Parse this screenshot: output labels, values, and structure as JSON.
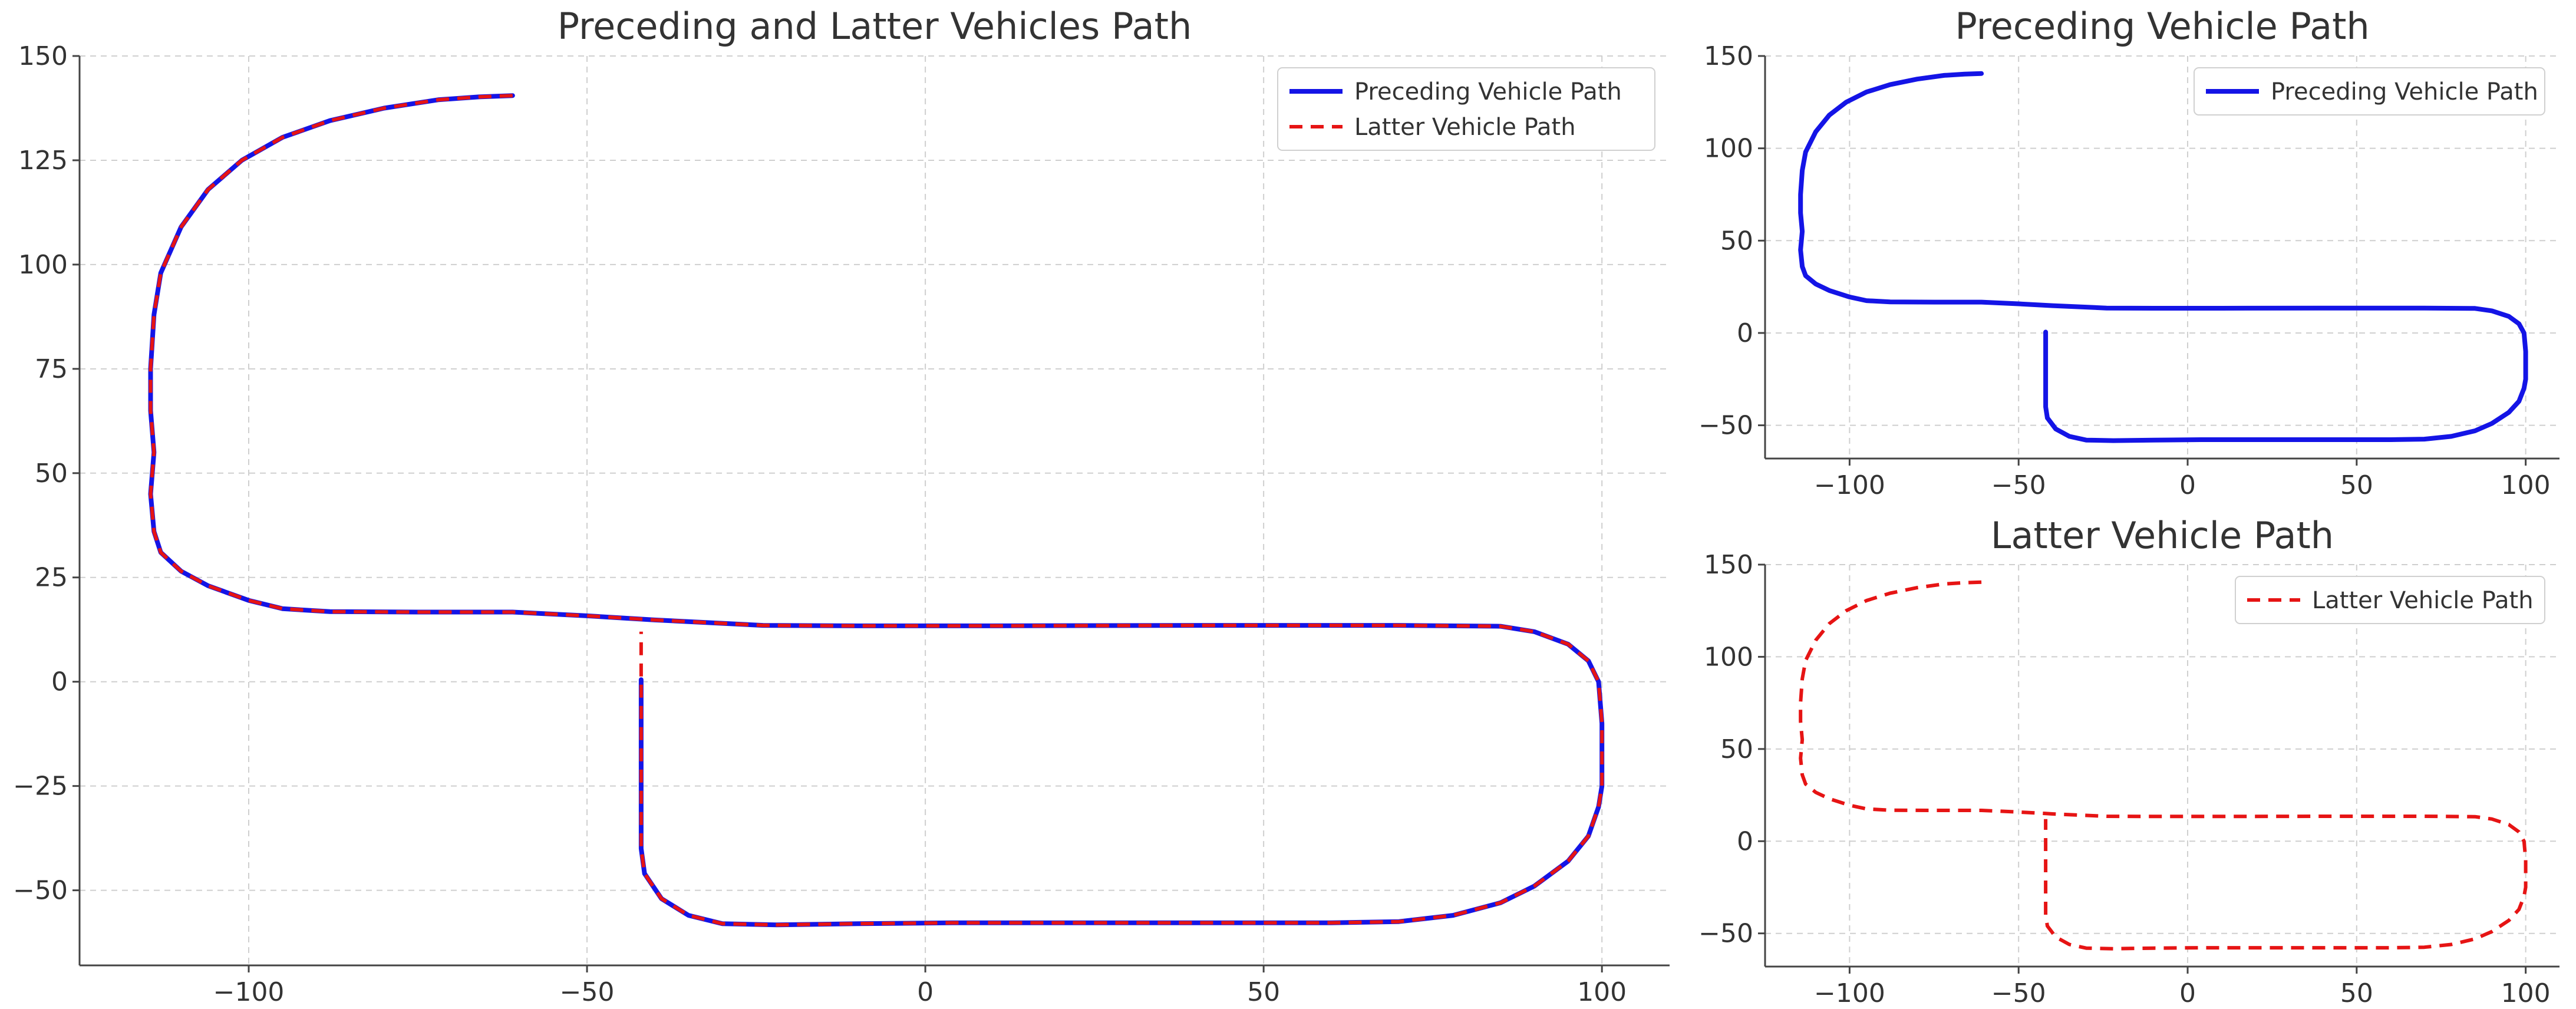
{
  "chart_data": [
    {
      "id": "combined",
      "type": "line",
      "title": "Preceding and Latter Vehicles Path",
      "xlim": [
        -125,
        110
      ],
      "ylim": [
        -68,
        150
      ],
      "xticks": [
        -100,
        -50,
        0,
        50,
        100
      ],
      "yticks": [
        -50,
        -25,
        0,
        25,
        50,
        75,
        100,
        125,
        150
      ],
      "grid": true,
      "legend_position": "top-right",
      "legend": [
        "Preceding Vehicle Path",
        "Latter Vehicle Path"
      ],
      "series": [
        {
          "name": "Preceding Vehicle Path",
          "color": "#1414e6",
          "style": "solid",
          "points": [
            [
              -61,
              140.5
            ],
            [
              -66,
              140.2
            ],
            [
              -72,
              139.5
            ],
            [
              -80,
              137.5
            ],
            [
              -88,
              134.5
            ],
            [
              -95,
              130.5
            ],
            [
              -101,
              125
            ],
            [
              -106,
              118
            ],
            [
              -110,
              109
            ],
            [
              -113,
              98
            ],
            [
              -114,
              88
            ],
            [
              -114.5,
              75
            ],
            [
              -114.5,
              65
            ],
            [
              -114,
              55
            ],
            [
              -114.5,
              45
            ],
            [
              -114,
              36
            ],
            [
              -113,
              31
            ],
            [
              -110,
              26.5
            ],
            [
              -106,
              23
            ],
            [
              -100,
              19.5
            ],
            [
              -95,
              17.5
            ],
            [
              -88,
              16.8
            ],
            [
              -75,
              16.7
            ],
            [
              -61,
              16.7
            ],
            [
              -50,
              15.8
            ],
            [
              -40,
              14.8
            ],
            [
              -30,
              14
            ],
            [
              -24,
              13.5
            ],
            [
              -10,
              13.4
            ],
            [
              10,
              13.4
            ],
            [
              40,
              13.5
            ],
            [
              70,
              13.5
            ],
            [
              85,
              13.3
            ],
            [
              90,
              12
            ],
            [
              95,
              9
            ],
            [
              98,
              5
            ],
            [
              99.5,
              0
            ],
            [
              100,
              -10
            ],
            [
              100,
              -25
            ],
            [
              99.5,
              -30
            ],
            [
              98,
              -37
            ],
            [
              95,
              -43
            ],
            [
              90,
              -49
            ],
            [
              85,
              -53
            ],
            [
              78,
              -56
            ],
            [
              70,
              -57.5
            ],
            [
              60,
              -57.8
            ],
            [
              40,
              -57.8
            ],
            [
              20,
              -57.8
            ],
            [
              4,
              -57.8
            ],
            [
              -10,
              -58
            ],
            [
              -22,
              -58.3
            ],
            [
              -30,
              -58
            ],
            [
              -35,
              -56
            ],
            [
              -39,
              -52
            ],
            [
              -41.5,
              -46
            ],
            [
              -42,
              -40
            ],
            [
              -42,
              -20
            ],
            [
              -42,
              -5
            ],
            [
              -42,
              0.5
            ]
          ]
        },
        {
          "name": "Latter Vehicle Path",
          "color": "#e61414",
          "style": "dashed",
          "points": [
            [
              -61,
              140.5
            ],
            [
              -66,
              140.2
            ],
            [
              -72,
              139.5
            ],
            [
              -80,
              137.5
            ],
            [
              -88,
              134.5
            ],
            [
              -95,
              130.5
            ],
            [
              -101,
              125
            ],
            [
              -106,
              118
            ],
            [
              -110,
              109
            ],
            [
              -113,
              98
            ],
            [
              -114,
              88
            ],
            [
              -114.5,
              75
            ],
            [
              -114.5,
              65
            ],
            [
              -114,
              55
            ],
            [
              -114.5,
              45
            ],
            [
              -114,
              36
            ],
            [
              -113,
              31
            ],
            [
              -110,
              26.5
            ],
            [
              -106,
              23
            ],
            [
              -100,
              19.5
            ],
            [
              -95,
              17.5
            ],
            [
              -88,
              16.8
            ],
            [
              -75,
              16.7
            ],
            [
              -61,
              16.7
            ],
            [
              -50,
              15.8
            ],
            [
              -42,
              15
            ],
            [
              -40,
              14.8
            ],
            [
              -30,
              14
            ],
            [
              -24,
              13.5
            ],
            [
              -10,
              13.4
            ],
            [
              10,
              13.4
            ],
            [
              40,
              13.5
            ],
            [
              70,
              13.5
            ],
            [
              85,
              13.3
            ],
            [
              90,
              12
            ],
            [
              95,
              9
            ],
            [
              98,
              5
            ],
            [
              99.5,
              0
            ],
            [
              100,
              -10
            ],
            [
              100,
              -25
            ],
            [
              99.5,
              -30
            ],
            [
              98,
              -37
            ],
            [
              95,
              -43
            ],
            [
              90,
              -49
            ],
            [
              85,
              -53
            ],
            [
              78,
              -56
            ],
            [
              70,
              -57.5
            ],
            [
              60,
              -57.8
            ],
            [
              40,
              -57.8
            ],
            [
              20,
              -57.8
            ],
            [
              4,
              -57.8
            ],
            [
              -10,
              -58
            ],
            [
              -22,
              -58.3
            ],
            [
              -30,
              -58
            ],
            [
              -35,
              -56
            ],
            [
              -39,
              -52
            ],
            [
              -41.5,
              -46
            ],
            [
              -42,
              -40
            ],
            [
              -42,
              -20
            ],
            [
              -42,
              -5
            ],
            [
              -42,
              5
            ],
            [
              -42,
              12
            ]
          ]
        }
      ]
    },
    {
      "id": "preceding",
      "type": "line",
      "title": "Preceding Vehicle Path",
      "xlim": [
        -125,
        110
      ],
      "ylim": [
        -68,
        150
      ],
      "xticks": [
        -100,
        -50,
        0,
        50,
        100
      ],
      "yticks": [
        -50,
        0,
        50,
        100,
        150
      ],
      "grid": true,
      "legend_position": "top-right",
      "legend": [
        "Preceding Vehicle Path"
      ],
      "series": [
        {
          "name": "Preceding Vehicle Path",
          "color": "#1414e6",
          "style": "solid",
          "points": [
            [
              -61,
              140.5
            ],
            [
              -66,
              140.2
            ],
            [
              -72,
              139.5
            ],
            [
              -80,
              137.5
            ],
            [
              -88,
              134.5
            ],
            [
              -95,
              130.5
            ],
            [
              -101,
              125
            ],
            [
              -106,
              118
            ],
            [
              -110,
              109
            ],
            [
              -113,
              98
            ],
            [
              -114,
              88
            ],
            [
              -114.5,
              75
            ],
            [
              -114.5,
              65
            ],
            [
              -114,
              55
            ],
            [
              -114.5,
              45
            ],
            [
              -114,
              36
            ],
            [
              -113,
              31
            ],
            [
              -110,
              26.5
            ],
            [
              -106,
              23
            ],
            [
              -100,
              19.5
            ],
            [
              -95,
              17.5
            ],
            [
              -88,
              16.8
            ],
            [
              -75,
              16.7
            ],
            [
              -61,
              16.7
            ],
            [
              -50,
              15.8
            ],
            [
              -40,
              14.8
            ],
            [
              -30,
              14
            ],
            [
              -24,
              13.5
            ],
            [
              -10,
              13.4
            ],
            [
              10,
              13.4
            ],
            [
              40,
              13.5
            ],
            [
              70,
              13.5
            ],
            [
              85,
              13.3
            ],
            [
              90,
              12
            ],
            [
              95,
              9
            ],
            [
              98,
              5
            ],
            [
              99.5,
              0
            ],
            [
              100,
              -10
            ],
            [
              100,
              -25
            ],
            [
              99.5,
              -30
            ],
            [
              98,
              -37
            ],
            [
              95,
              -43
            ],
            [
              90,
              -49
            ],
            [
              85,
              -53
            ],
            [
              78,
              -56
            ],
            [
              70,
              -57.5
            ],
            [
              60,
              -57.8
            ],
            [
              40,
              -57.8
            ],
            [
              20,
              -57.8
            ],
            [
              4,
              -57.8
            ],
            [
              -10,
              -58
            ],
            [
              -22,
              -58.3
            ],
            [
              -30,
              -58
            ],
            [
              -35,
              -56
            ],
            [
              -39,
              -52
            ],
            [
              -41.5,
              -46
            ],
            [
              -42,
              -40
            ],
            [
              -42,
              -20
            ],
            [
              -42,
              -5
            ],
            [
              -42,
              0.5
            ]
          ]
        }
      ]
    },
    {
      "id": "latter",
      "type": "line",
      "title": "Latter Vehicle Path",
      "xlim": [
        -125,
        110
      ],
      "ylim": [
        -68,
        150
      ],
      "xticks": [
        -100,
        -50,
        0,
        50,
        100
      ],
      "yticks": [
        -50,
        0,
        50,
        100,
        150
      ],
      "grid": true,
      "legend_position": "top-right",
      "legend": [
        "Latter Vehicle Path"
      ],
      "series": [
        {
          "name": "Latter Vehicle Path",
          "color": "#e61414",
          "style": "dashed",
          "points": [
            [
              -61,
              140.5
            ],
            [
              -66,
              140.2
            ],
            [
              -72,
              139.5
            ],
            [
              -80,
              137.5
            ],
            [
              -88,
              134.5
            ],
            [
              -95,
              130.5
            ],
            [
              -101,
              125
            ],
            [
              -106,
              118
            ],
            [
              -110,
              109
            ],
            [
              -113,
              98
            ],
            [
              -114,
              88
            ],
            [
              -114.5,
              75
            ],
            [
              -114.5,
              65
            ],
            [
              -114,
              55
            ],
            [
              -114.5,
              45
            ],
            [
              -114,
              36
            ],
            [
              -113,
              31
            ],
            [
              -110,
              26.5
            ],
            [
              -106,
              23
            ],
            [
              -100,
              19.5
            ],
            [
              -95,
              17.5
            ],
            [
              -88,
              16.8
            ],
            [
              -75,
              16.7
            ],
            [
              -61,
              16.7
            ],
            [
              -50,
              15.8
            ],
            [
              -42,
              15
            ],
            [
              -40,
              14.8
            ],
            [
              -30,
              14
            ],
            [
              -24,
              13.5
            ],
            [
              -10,
              13.4
            ],
            [
              10,
              13.4
            ],
            [
              40,
              13.5
            ],
            [
              70,
              13.5
            ],
            [
              85,
              13.3
            ],
            [
              90,
              12
            ],
            [
              95,
              9
            ],
            [
              98,
              5
            ],
            [
              99.5,
              0
            ],
            [
              100,
              -10
            ],
            [
              100,
              -25
            ],
            [
              99.5,
              -30
            ],
            [
              98,
              -37
            ],
            [
              95,
              -43
            ],
            [
              90,
              -49
            ],
            [
              85,
              -53
            ],
            [
              78,
              -56
            ],
            [
              70,
              -57.5
            ],
            [
              60,
              -57.8
            ],
            [
              40,
              -57.8
            ],
            [
              20,
              -57.8
            ],
            [
              4,
              -57.8
            ],
            [
              -10,
              -58
            ],
            [
              -22,
              -58.3
            ],
            [
              -30,
              -58
            ],
            [
              -35,
              -56
            ],
            [
              -39,
              -52
            ],
            [
              -41.5,
              -46
            ],
            [
              -42,
              -40
            ],
            [
              -42,
              -20
            ],
            [
              -42,
              -5
            ],
            [
              -42,
              5
            ],
            [
              -42,
              12
            ]
          ]
        }
      ]
    }
  ]
}
